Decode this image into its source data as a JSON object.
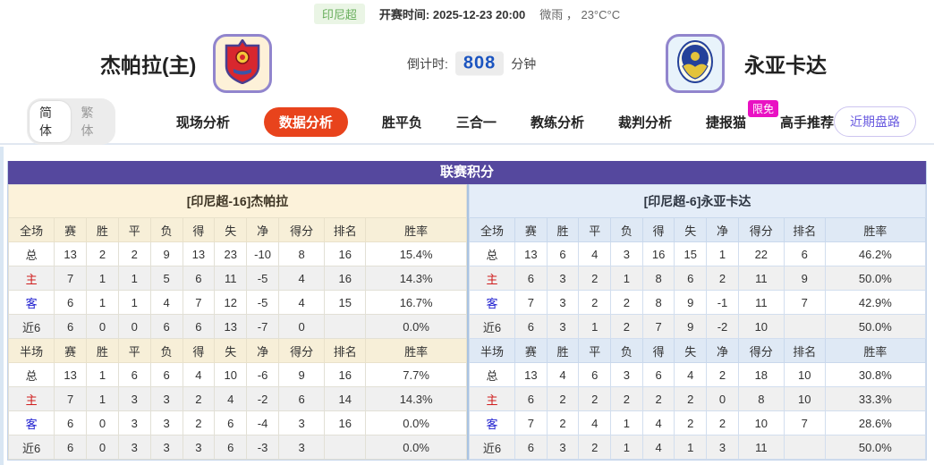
{
  "topbar": {
    "league": "印尼超",
    "kickoff_label": "开赛时间:",
    "kickoff_time": "2025-12-23 20:00",
    "weather": "微雨 ， 23°C°C"
  },
  "header": {
    "home_name": "杰帕拉(主)",
    "away_name": "永亚卡达",
    "countdown_label": "倒计时:",
    "countdown_value": "808",
    "countdown_unit": "分钟",
    "home_badge": "red-shield-crest",
    "away_badge": "blue-oval-crest"
  },
  "tabs": {
    "lang_on": "简体",
    "lang_off": "繁体",
    "items": [
      {
        "label": "现场分析",
        "active": false
      },
      {
        "label": "数据分析",
        "active": true
      },
      {
        "label": "胜平负",
        "active": false
      },
      {
        "label": "三合一",
        "active": false
      },
      {
        "label": "教练分析",
        "active": false
      },
      {
        "label": "裁判分析",
        "active": false
      },
      {
        "label": "捷报猫",
        "active": false,
        "badge": "限免"
      },
      {
        "label": "高手推荐",
        "active": false
      }
    ],
    "recent_button": "近期盘路"
  },
  "colors": {
    "table_header_purple": "#55489e",
    "active_tab_orange": "#e8431c",
    "free_badge_magenta": "#e911c3",
    "countdown_blue": "#1b54c0",
    "home_theme_cream": "#fcf2da",
    "away_theme_blue": "#e4edf8",
    "home_row_red": "#cf1d1d",
    "away_row_blue": "#1d1dcf",
    "league_green": "#67ae5b"
  },
  "table": {
    "title": "联赛积分",
    "sides": [
      {
        "banner": "[印尼超-16]杰帕拉",
        "sections": [
          {
            "header": [
              "全场",
              "赛",
              "胜",
              "平",
              "负",
              "得",
              "失",
              "净",
              "得分",
              "排名",
              "胜率"
            ],
            "rows": [
              {
                "label": "总",
                "type": "total",
                "cells": [
                  "13",
                  "2",
                  "2",
                  "9",
                  "13",
                  "23",
                  "-10",
                  "8",
                  "16",
                  "15.4%"
                ]
              },
              {
                "label": "主",
                "type": "home",
                "cells": [
                  "7",
                  "1",
                  "1",
                  "5",
                  "6",
                  "11",
                  "-5",
                  "4",
                  "16",
                  "14.3%"
                ]
              },
              {
                "label": "客",
                "type": "away",
                "cells": [
                  "6",
                  "1",
                  "1",
                  "4",
                  "7",
                  "12",
                  "-5",
                  "4",
                  "15",
                  "16.7%"
                ]
              },
              {
                "label": "近6",
                "type": "recent",
                "cells": [
                  "6",
                  "0",
                  "0",
                  "6",
                  "6",
                  "13",
                  "-7",
                  "0",
                  "",
                  "0.0%"
                ]
              }
            ]
          },
          {
            "header": [
              "半场",
              "赛",
              "胜",
              "平",
              "负",
              "得",
              "失",
              "净",
              "得分",
              "排名",
              "胜率"
            ],
            "rows": [
              {
                "label": "总",
                "type": "total",
                "cells": [
                  "13",
                  "1",
                  "6",
                  "6",
                  "4",
                  "10",
                  "-6",
                  "9",
                  "16",
                  "7.7%"
                ]
              },
              {
                "label": "主",
                "type": "home",
                "cells": [
                  "7",
                  "1",
                  "3",
                  "3",
                  "2",
                  "4",
                  "-2",
                  "6",
                  "14",
                  "14.3%"
                ]
              },
              {
                "label": "客",
                "type": "away",
                "cells": [
                  "6",
                  "0",
                  "3",
                  "3",
                  "2",
                  "6",
                  "-4",
                  "3",
                  "16",
                  "0.0%"
                ]
              },
              {
                "label": "近6",
                "type": "recent",
                "cells": [
                  "6",
                  "0",
                  "3",
                  "3",
                  "3",
                  "6",
                  "-3",
                  "3",
                  "",
                  "0.0%"
                ]
              }
            ]
          }
        ]
      },
      {
        "banner": "[印尼超-6]永亚卡达",
        "sections": [
          {
            "header": [
              "全场",
              "赛",
              "胜",
              "平",
              "负",
              "得",
              "失",
              "净",
              "得分",
              "排名",
              "胜率"
            ],
            "rows": [
              {
                "label": "总",
                "type": "total",
                "cells": [
                  "13",
                  "6",
                  "4",
                  "3",
                  "16",
                  "15",
                  "1",
                  "22",
                  "6",
                  "46.2%"
                ]
              },
              {
                "label": "主",
                "type": "home",
                "cells": [
                  "6",
                  "3",
                  "2",
                  "1",
                  "8",
                  "6",
                  "2",
                  "11",
                  "9",
                  "50.0%"
                ]
              },
              {
                "label": "客",
                "type": "away",
                "cells": [
                  "7",
                  "3",
                  "2",
                  "2",
                  "8",
                  "9",
                  "-1",
                  "11",
                  "7",
                  "42.9%"
                ]
              },
              {
                "label": "近6",
                "type": "recent",
                "cells": [
                  "6",
                  "3",
                  "1",
                  "2",
                  "7",
                  "9",
                  "-2",
                  "10",
                  "",
                  "50.0%"
                ]
              }
            ]
          },
          {
            "header": [
              "半场",
              "赛",
              "胜",
              "平",
              "负",
              "得",
              "失",
              "净",
              "得分",
              "排名",
              "胜率"
            ],
            "rows": [
              {
                "label": "总",
                "type": "total",
                "cells": [
                  "13",
                  "4",
                  "6",
                  "3",
                  "6",
                  "4",
                  "2",
                  "18",
                  "10",
                  "30.8%"
                ]
              },
              {
                "label": "主",
                "type": "home",
                "cells": [
                  "6",
                  "2",
                  "2",
                  "2",
                  "2",
                  "2",
                  "0",
                  "8",
                  "10",
                  "33.3%"
                ]
              },
              {
                "label": "客",
                "type": "away",
                "cells": [
                  "7",
                  "2",
                  "4",
                  "1",
                  "4",
                  "2",
                  "2",
                  "10",
                  "7",
                  "28.6%"
                ]
              },
              {
                "label": "近6",
                "type": "recent",
                "cells": [
                  "6",
                  "3",
                  "2",
                  "1",
                  "4",
                  "1",
                  "3",
                  "11",
                  "",
                  "50.0%"
                ]
              }
            ]
          }
        ]
      }
    ]
  }
}
